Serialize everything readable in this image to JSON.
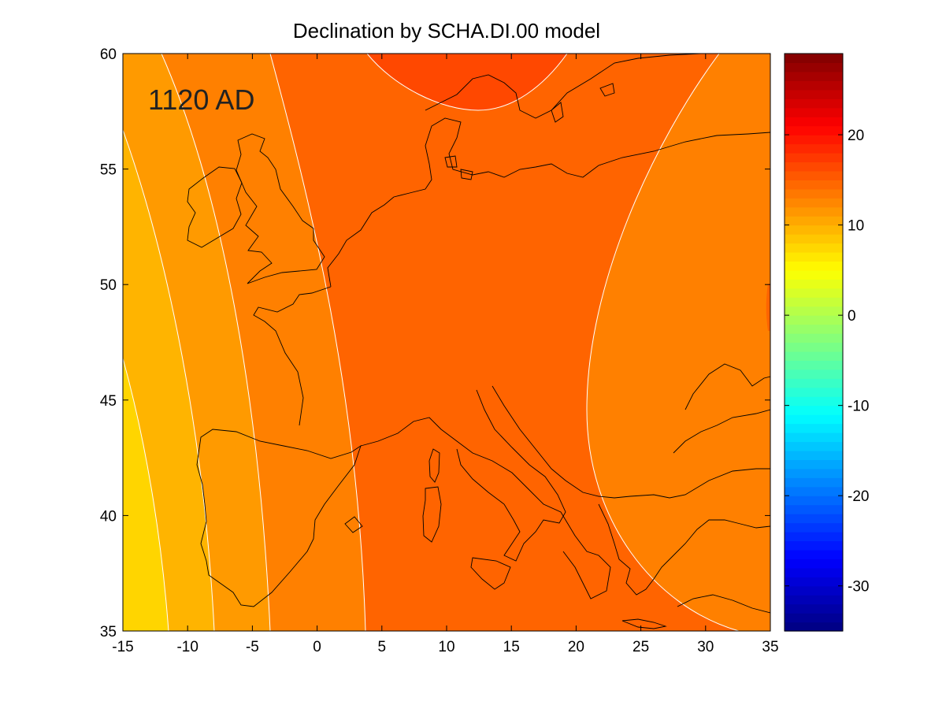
{
  "title": "Declination by SCHA.DI.00 model",
  "year_label": "1120 AD",
  "chart_data": {
    "type": "heatmap",
    "title": "Declination by SCHA.DI.00 model",
    "annotation": "1120 AD",
    "x_ticks": [
      "-15",
      "-10",
      "-5",
      "0",
      "5",
      "10",
      "15",
      "20",
      "25",
      "30",
      "35"
    ],
    "y_ticks": [
      "35",
      "40",
      "45",
      "50",
      "55",
      "60"
    ],
    "xlim": [
      -15,
      35
    ],
    "ylim": [
      35,
      60
    ],
    "colorbar": {
      "range": [
        -35,
        29
      ],
      "ticks": [
        "-30",
        "-20",
        "-10",
        "0",
        "10",
        "20"
      ],
      "colormap": "jet"
    },
    "contour_band_values": [
      6,
      8,
      10,
      12,
      14,
      16
    ],
    "coastlines": true,
    "grid": false
  },
  "colors": {
    "band_6": "#ffd500",
    "band_8": "#ffb400",
    "band_10": "#ff9a00",
    "band_12": "#ff8000",
    "band_14": "#ff6400",
    "band_16": "#ff4800",
    "contour_line": "#ffffff",
    "coastline": "#000000"
  }
}
